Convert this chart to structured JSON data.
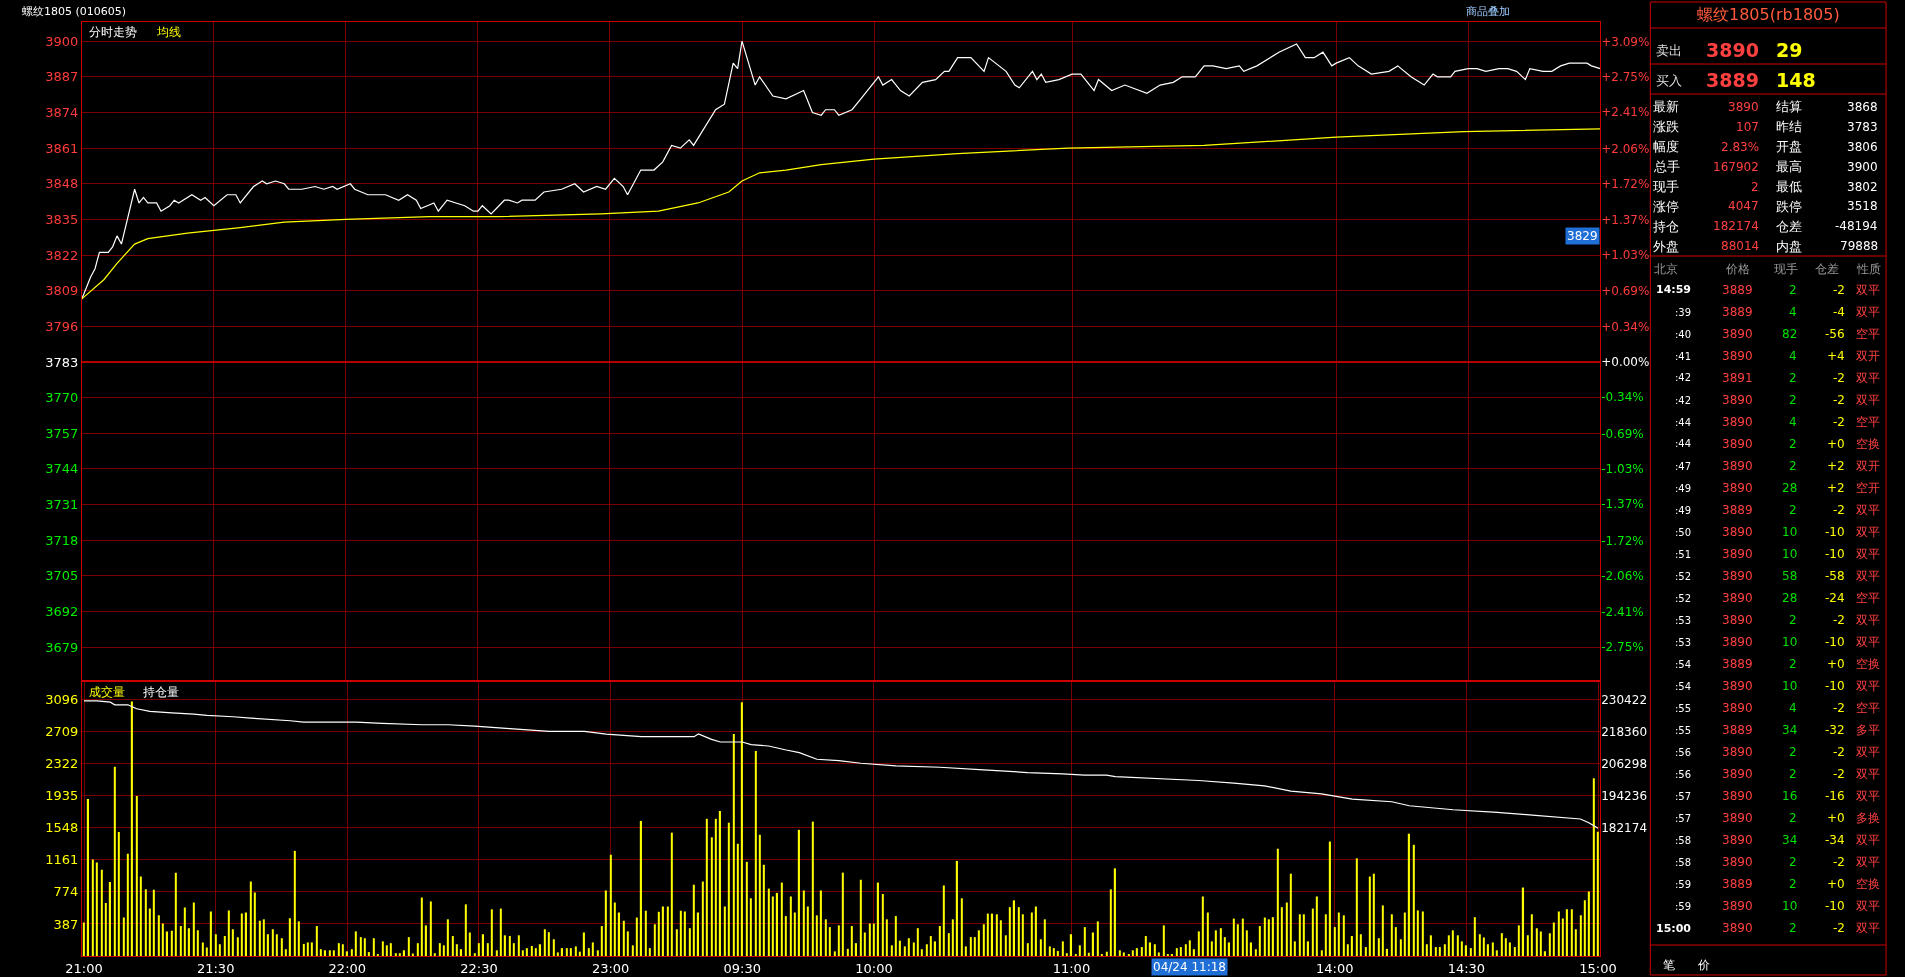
{
  "chart_data": [
    {
      "type": "line",
      "title": "螺纹1805 (010605)",
      "ylim": [
        3667,
        3907
      ],
      "yticks": [
        3679,
        3692,
        3705,
        3718,
        3731,
        3744,
        3757,
        3770,
        3783,
        3796,
        3809,
        3822,
        3835,
        3848,
        3861,
        3874,
        3887,
        3900
      ],
      "y2lim": [
        -3.066,
        3.278
      ],
      "y2ticks": [
        {
          "value": -2.75,
          "label": "-2.75%"
        },
        {
          "value": -2.41,
          "label": "-2.41%"
        },
        {
          "value": -2.06,
          "label": "-2.06%"
        },
        {
          "value": -1.72,
          "label": "-1.72%"
        },
        {
          "value": -1.37,
          "label": "-1.37%"
        },
        {
          "value": -1.03,
          "label": "-1.03%"
        },
        {
          "value": -0.69,
          "label": "-0.69%"
        },
        {
          "value": -0.34,
          "label": "-0.34%"
        },
        {
          "value": 0,
          "label": "+0.00%"
        },
        {
          "value": 0.34,
          "label": "+0.34%"
        },
        {
          "value": 0.69,
          "label": "+0.69%"
        },
        {
          "value": 1.03,
          "label": "+1.03%"
        },
        {
          "value": 1.37,
          "label": "+1.37%"
        },
        {
          "value": 1.72,
          "label": "+1.72%"
        },
        {
          "value": 2.06,
          "label": "+2.06%"
        },
        {
          "value": 2.41,
          "label": "+2.41%"
        },
        {
          "value": 2.75,
          "label": "+2.75%"
        },
        {
          "value": 3.09,
          "label": "+3.09%"
        }
      ],
      "grid": true,
      "legend": "top left",
      "tick_labels": "y",
      "ref_lines": [
        {
          "axis": "y",
          "value": 3783,
          "color": "#b00000"
        }
      ],
      "annotations": [
        {
          "text": "3829",
          "y": 3829
        },
        "商品叠加"
      ],
      "series": [
        {
          "name": "分时走势",
          "color": "#ffffff",
          "values": [
            3806,
            null,
            3814,
            3817,
            3823,
            null,
            3823,
            3825,
            3829,
            3826,
            null,
            null,
            3846,
            3841,
            3843,
            3841,
            null,
            3841,
            3838,
            null,
            3840,
            3842,
            3841,
            null,
            null,
            3844,
            null,
            3842,
            3843,
            null,
            3840,
            null,
            null,
            3844,
            null,
            3844,
            3841,
            null,
            null,
            3847,
            3848,
            3849,
            3848,
            null,
            3849,
            null,
            3848,
            3846,
            null,
            null,
            3846,
            null,
            null,
            3847,
            null,
            3846,
            null,
            3847,
            3846,
            null,
            null,
            3848,
            3846,
            null,
            null,
            3844,
            null,
            3844,
            null,
            3844,
            null,
            null,
            3842,
            null,
            3844,
            null,
            3842,
            3839,
            null,
            null,
            3841,
            3838,
            null,
            3842,
            null,
            3841,
            null,
            3840,
            null,
            3838,
            3838,
            3840,
            null,
            3837,
            null,
            null,
            3842,
            3842,
            null,
            3841,
            3842,
            null,
            null,
            3842,
            null,
            3845,
            null,
            null,
            null,
            3846,
            null,
            null,
            3848,
            null,
            3845,
            null,
            null,
            3847,
            null,
            3846,
            null,
            3850,
            null,
            3847,
            3844,
            null,
            null,
            3853,
            null,
            null,
            3853,
            null,
            3856,
            null,
            3862,
            null,
            3861,
            null,
            3864,
            3862,
            null,
            null,
            null,
            null,
            3875,
            null,
            3877,
            null,
            3892,
            3890,
            3900,
            null,
            null,
            3884,
            3887,
            null,
            null,
            3880,
            null,
            null,
            3879,
            null,
            null,
            null,
            3882,
            null,
            3874,
            null,
            3873,
            3875,
            null,
            3875,
            3873,
            null,
            null,
            3875,
            null,
            3879,
            null,
            null,
            null,
            3887,
            3884,
            null,
            3886,
            null,
            3882,
            null,
            3880,
            null,
            null,
            3885,
            null,
            null,
            3886,
            null,
            3889,
            3889,
            null,
            3894,
            null,
            null,
            3894,
            null,
            null,
            3889,
            3894,
            null,
            null,
            null,
            3889,
            null,
            3884,
            3883,
            null,
            null,
            3889,
            3886,
            3888,
            3885,
            null,
            null,
            3886,
            null,
            null,
            3888,
            null,
            3888,
            null,
            null,
            3882,
            3886,
            null,
            null,
            3882,
            null,
            null,
            3884,
            null,
            null,
            null,
            null,
            3881,
            null,
            null,
            3884,
            null,
            null,
            3885,
            null,
            3887,
            null,
            null,
            3887,
            null,
            3891,
            null,
            3891,
            null,
            null,
            3890,
            null,
            null,
            3891,
            3889,
            null,
            null,
            3891,
            null,
            null,
            3894,
            null,
            3896,
            null,
            null,
            null,
            3899,
            null,
            3894,
            null,
            3894,
            null,
            3896,
            null,
            3891,
            3892,
            null,
            null,
            3894,
            null,
            3891,
            null,
            null,
            3888,
            null,
            null,
            null,
            3889,
            null,
            3891,
            null,
            null,
            3887,
            null,
            null,
            3884,
            null,
            3888,
            3887,
            null,
            null,
            3887,
            3889,
            null,
            null,
            3890,
            null,
            3890,
            null,
            3889,
            null,
            null,
            3890,
            null,
            3890,
            null,
            3889,
            null,
            3886,
            3890,
            null,
            null,
            3889,
            null,
            3889,
            null,
            3891,
            null,
            3892,
            null,
            null,
            null,
            3892,
            3891,
            null,
            3890
          ]
        },
        {
          "name": "均线",
          "color": "#ffff00",
          "values": [
            3806,
            null,
            null,
            null,
            null,
            3813,
            null,
            null,
            3819,
            null,
            null,
            null,
            3826,
            null,
            null,
            3828,
            null,
            null,
            null,
            null,
            null,
            null,
            null,
            null,
            3830,
            null,
            null,
            null,
            null,
            null,
            null,
            null,
            null,
            null,
            null,
            null,
            3832,
            null,
            null,
            null,
            null,
            null,
            null,
            null,
            null,
            null,
            3834,
            null,
            null,
            null,
            null,
            null,
            null,
            null,
            null,
            null,
            null,
            null,
            null,
            null,
            3835,
            null,
            null,
            null,
            null,
            null,
            null,
            null,
            null,
            null,
            null,
            null,
            null,
            null,
            null,
            null,
            null,
            null,
            null,
            3836,
            null,
            null,
            null,
            null,
            null,
            null,
            null,
            null,
            null,
            null,
            null,
            null,
            null,
            null,
            3836,
            null,
            null,
            null,
            null,
            null,
            null,
            null,
            null,
            null,
            null,
            null,
            null,
            null,
            null,
            null,
            null,
            null,
            null,
            null,
            null,
            null,
            null,
            null,
            3837,
            null,
            null,
            null,
            null,
            null,
            null,
            null,
            null,
            null,
            null,
            null,
            null,
            3838,
            null,
            null,
            null,
            null,
            null,
            null,
            null,
            null,
            3841,
            null,
            null,
            null,
            null,
            null,
            null,
            3845,
            null,
            null,
            3849,
            null,
            null,
            null,
            3852,
            null,
            null,
            null,
            null,
            null,
            3853,
            null,
            null,
            null,
            3854,
            null,
            null,
            null,
            3855,
            null,
            null,
            null,
            null,
            null,
            null,
            null,
            null,
            null,
            null,
            null,
            3857,
            null,
            null,
            null,
            null,
            null,
            null,
            null,
            null,
            null,
            null,
            null,
            null,
            null,
            null,
            null,
            null,
            null,
            null,
            3859,
            null,
            null,
            null,
            null,
            null,
            null,
            null,
            null,
            null,
            null,
            null,
            null,
            null,
            null,
            null,
            null,
            null,
            null,
            null,
            null,
            null,
            null,
            null,
            null,
            3861,
            null,
            null,
            null,
            null,
            null,
            null,
            null,
            null,
            null,
            null,
            null,
            null,
            null,
            null,
            null,
            null,
            null,
            null,
            null,
            null,
            null,
            null,
            null,
            null,
            null,
            null,
            null,
            null,
            null,
            null,
            3862,
            null,
            null,
            null,
            null,
            null,
            null,
            null,
            null,
            null,
            null,
            null,
            null,
            null,
            null,
            null,
            null,
            null,
            null,
            null,
            null,
            null,
            null,
            null,
            null,
            null,
            null,
            null,
            null,
            null,
            3865,
            null,
            null,
            null,
            null,
            null,
            null,
            null,
            null,
            null,
            null,
            null,
            null,
            null,
            null,
            null,
            null,
            null,
            null,
            null,
            null,
            null,
            null,
            null,
            null,
            null,
            null,
            null,
            null,
            3867,
            null,
            null,
            null,
            null,
            null,
            null,
            null,
            null,
            null,
            null,
            null,
            null,
            null,
            null,
            null,
            null,
            null,
            null,
            null,
            null,
            null,
            null,
            null,
            null,
            null,
            null,
            null,
            null,
            null,
            null,
            3868
          ]
        }
      ]
    },
    {
      "type": "bar",
      "categories": [
        "21:00",
        null,
        null,
        null,
        null,
        null,
        null,
        null,
        null,
        null,
        null,
        null,
        null,
        null,
        null,
        null,
        null,
        null,
        null,
        null,
        null,
        null,
        null,
        null,
        null,
        null,
        null,
        null,
        null,
        null,
        "21:30",
        null,
        null,
        null,
        null,
        null,
        null,
        null,
        null,
        null,
        null,
        null,
        null,
        null,
        null,
        null,
        null,
        null,
        null,
        null,
        null,
        null,
        null,
        null,
        null,
        null,
        null,
        null,
        null,
        null,
        "22:00",
        null,
        null,
        null,
        null,
        null,
        null,
        null,
        null,
        null,
        null,
        null,
        null,
        null,
        null,
        null,
        null,
        null,
        null,
        null,
        null,
        null,
        null,
        null,
        null,
        null,
        null,
        null,
        null,
        null,
        "22:30",
        null,
        null,
        null,
        null,
        null,
        null,
        null,
        null,
        null,
        null,
        null,
        null,
        null,
        null,
        null,
        null,
        null,
        null,
        null,
        null,
        null,
        null,
        null,
        null,
        null,
        null,
        null,
        null,
        null,
        "23:00",
        null,
        null,
        null,
        null,
        null,
        null,
        null,
        null,
        null,
        null,
        null,
        null,
        null,
        null,
        null,
        null,
        null,
        null,
        null,
        null,
        null,
        null,
        null,
        null,
        null,
        null,
        null,
        null,
        null,
        "09:30",
        null,
        null,
        null,
        null,
        null,
        null,
        null,
        null,
        null,
        null,
        null,
        null,
        null,
        null,
        null,
        null,
        null,
        null,
        null,
        null,
        null,
        null,
        null,
        null,
        null,
        null,
        null,
        null,
        null,
        "10:00",
        null,
        null,
        null,
        null,
        null,
        null,
        null,
        null,
        null,
        null,
        null,
        null,
        null,
        null,
        null,
        null,
        null,
        null,
        null,
        null,
        null,
        null,
        null,
        null,
        null,
        null,
        null,
        null,
        null,
        null,
        null,
        null,
        null,
        null,
        null,
        null,
        null,
        null,
        null,
        null,
        null,
        null,
        null,
        null,
        "11:00",
        null,
        null,
        null,
        null,
        null,
        null,
        null,
        null,
        null,
        null,
        null,
        null,
        null,
        null,
        null,
        null,
        null,
        null,
        null,
        null,
        null,
        null,
        null,
        null,
        null,
        null,
        null,
        null,
        null,
        null,
        null,
        null,
        null,
        null,
        null,
        null,
        null,
        null,
        null,
        null,
        null,
        null,
        null,
        null,
        null,
        null,
        null,
        null,
        null,
        null,
        null,
        null,
        null,
        null,
        null,
        null,
        null,
        null,
        null,
        "14:00",
        null,
        null,
        null,
        null,
        null,
        null,
        null,
        null,
        null,
        null,
        null,
        null,
        null,
        null,
        null,
        null,
        null,
        null,
        null,
        null,
        null,
        null,
        null,
        null,
        null,
        null,
        null,
        null,
        null,
        "14:30",
        null,
        null,
        null,
        null,
        null,
        null,
        null,
        null,
        null,
        null,
        null,
        null,
        null,
        null,
        null,
        null,
        null,
        null,
        null,
        null,
        null,
        null,
        null,
        null,
        null,
        null,
        null,
        null,
        null,
        "15:00"
      ],
      "ylim": [
        0,
        3310
      ],
      "yticks": [
        387,
        774,
        1161,
        1548,
        1935,
        2322,
        2709,
        3096
      ],
      "y2lim": [
        133926,
        237092
      ],
      "y2ticks": [
        182174,
        194236,
        206298,
        218360,
        230422
      ],
      "grid": true,
      "legend": "top left",
      "annotations": [
        "04/24 11:18"
      ],
      "series": [
        {
          "name": "成交量",
          "color": "#ffff00",
          "values": [
            405,
            1898,
            1167,
            1128,
            1042,
            641,
            895,
            2286,
            1498,
            465,
            1236,
            3074,
            1933,
            960,
            805,
            573,
            801,
            491,
            392,
            297,
            306,
            1007,
            362,
            585,
            336,
            646,
            310,
            164,
            103,
            538,
            263,
            142,
            241,
            551,
            323,
            228,
            512,
            525,
            900,
            766,
            426,
            443,
            263,
            323,
            263,
            215,
            82,
            456,
            1270,
            418,
            146,
            164,
            164,
            362,
            82,
            69,
            69,
            69,
            155,
            142,
            56,
            82,
            297,
            228,
            215,
            47,
            215,
            22,
            177,
            129,
            155,
            34,
            34,
            69,
            228,
            30,
            155,
            706,
            370,
            659,
            34,
            155,
            129,
            443,
            241,
            142,
            82,
            624,
            284,
            34,
            155,
            263,
            155,
            564,
            69,
            573,
            250,
            241,
            155,
            250,
            69,
            95,
            121,
            95,
            142,
            323,
            288,
            202,
            43,
            95,
            95,
            95,
            116,
            52,
            284,
            95,
            164,
            69,
            362,
            792,
            1223,
            646,
            525,
            426,
            297,
            129,
            465,
            1632,
            547,
            95,
            383,
            534,
            598,
            598,
            1490,
            323,
            547,
            538,
            336,
            861,
            525,
            900,
            1657,
            1434,
            1657,
            1752,
            598,
            1610,
            2682,
            1356,
            3065,
            1137,
            697,
            2475,
            1464,
            1102,
            814,
            719,
            762,
            887,
            482,
            719,
            525,
            1524,
            792,
            598,
            1623,
            491,
            792,
            443,
            349,
            56,
            370,
            1007,
            86,
            362,
            155,
            921,
            284,
            392,
            392,
            887,
            749,
            443,
            129,
            482,
            185,
            116,
            215,
            164,
            336,
            82,
            142,
            241,
            177,
            362,
            852,
            276,
            443,
            1149,
            697,
            116,
            228,
            228,
            310,
            383,
            512,
            512,
            504,
            431,
            250,
            590,
            672,
            590,
            504,
            155,
            525,
            598,
            202,
            443,
            116,
            95,
            60,
            177,
            34,
            263,
            22,
            129,
            349,
            39,
            284,
            418,
            17,
            52,
            805,
            1059,
            69,
            43,
            17,
            69,
            95,
            108,
            241,
            164,
            142,
            43,
            370,
            17,
            17,
            95,
            108,
            142,
            189,
            82,
            297,
            719,
            525,
            177,
            310,
            336,
            228,
            164,
            452,
            383,
            452,
            310,
            164,
            82,
            362,
            465,
            443,
            469,
            1296,
            590,
            646,
            994,
            177,
            504,
            504,
            177,
            573,
            719,
            69,
            504,
            1382,
            349,
            525,
            491,
            142,
            241,
            1180,
            263,
            108,
            960,
            994,
            215,
            611,
            86,
            504,
            349,
            202,
            525,
            1477,
            1343,
            551,
            538,
            142,
            250,
            108,
            108,
            142,
            250,
            310,
            250,
            177,
            129,
            95,
            469,
            263,
            224,
            142,
            164,
            69,
            276,
            215,
            164,
            108,
            370,
            827,
            250,
            504,
            336,
            297,
            56,
            276,
            405,
            538,
            452,
            564,
            564,
            323,
            491,
            672,
            779,
            2148,
            1502
          ]
        },
        {
          "name": "持仓量",
          "type": "line",
          "axis": "y2",
          "color": "#ffffff",
          "values": [
            230000,
            null,
            null,
            230000,
            null,
            null,
            229500,
            228500,
            null,
            null,
            228500,
            null,
            227000,
            null,
            null,
            226000,
            null,
            null,
            null,
            null,
            225500,
            null,
            null,
            null,
            null,
            225000,
            null,
            null,
            224500,
            null,
            null,
            null,
            null,
            null,
            224000,
            null,
            null,
            null,
            223500,
            null,
            null,
            null,
            null,
            null,
            null,
            null,
            null,
            222500,
            null,
            null,
            222000,
            null,
            null,
            null,
            null,
            null,
            null,
            null,
            null,
            null,
            null,
            null,
            222000,
            null,
            null,
            null,
            null,
            null,
            221500,
            null,
            null,
            null,
            null,
            null,
            null,
            null,
            null,
            221000,
            null,
            null,
            null,
            null,
            null,
            221000,
            null,
            null,
            null,
            null,
            null,
            220500,
            null,
            null,
            null,
            null,
            null,
            null,
            null,
            219500,
            null,
            null,
            null,
            null,
            null,
            null,
            null,
            null,
            218500,
            null,
            null,
            null,
            null,
            null,
            null,
            null,
            218500,
            null,
            null,
            null,
            null,
            217500,
            null,
            null,
            null,
            null,
            null,
            null,
            null,
            216500,
            null,
            null,
            null,
            null,
            null,
            null,
            null,
            null,
            null,
            null,
            null,
            216500,
            217500,
            null,
            null,
            215500,
            null,
            214500,
            null,
            null,
            null,
            null,
            214500,
            null,
            213500,
            null,
            null,
            null,
            213000,
            null,
            null,
            null,
            211500,
            null,
            null,
            210500,
            null,
            null,
            null,
            208000,
            null,
            null,
            null,
            null,
            207500,
            null,
            null,
            null,
            null,
            206500,
            null,
            null,
            null,
            null,
            null,
            null,
            null,
            205500,
            null,
            null,
            null,
            null,
            null,
            null,
            null,
            null,
            null,
            205000,
            null,
            null,
            null,
            null,
            null,
            null,
            null,
            null,
            null,
            204000,
            null,
            null,
            null,
            null,
            null,
            null,
            null,
            null,
            null,
            203000,
            null,
            null,
            null,
            null,
            null,
            null,
            null,
            202500,
            null,
            null,
            null,
            null,
            202000,
            null,
            null,
            null,
            null,
            202000,
            null,
            201500,
            null,
            null,
            null,
            null,
            null,
            null,
            null,
            null,
            null,
            null,
            null,
            null,
            null,
            null,
            null,
            null,
            null,
            null,
            200000,
            null,
            null,
            null,
            null,
            null,
            null,
            null,
            199000,
            null,
            null,
            null,
            null,
            null,
            null,
            198000,
            null,
            null,
            null,
            null,
            null,
            196000,
            null,
            null,
            null,
            null,
            null,
            null,
            195000,
            null,
            null,
            null,
            null,
            null,
            null,
            193000,
            null,
            null,
            null,
            null,
            null,
            null,
            null,
            null,
            192000,
            null,
            null,
            null,
            190500,
            null,
            null,
            null,
            null,
            null,
            null,
            null,
            null,
            null,
            189000,
            null,
            null,
            null,
            null,
            null,
            null,
            null,
            null,
            null,
            188000,
            null,
            null,
            null,
            null,
            null,
            null,
            null,
            187000,
            null,
            null,
            null,
            null,
            null,
            null,
            null,
            null,
            null,
            null,
            185500,
            null,
            184000,
            null,
            182000
          ]
        }
      ]
    },
    {
      "type": "other",
      "title": "螺纹1805(rb1805)",
      "cell_labels": [
        [
          "卖出",
          "3890",
          "29"
        ],
        [
          "买入",
          "3889",
          "148"
        ],
        [
          "最新",
          "3890",
          "结算",
          "3868"
        ],
        [
          "涨跌",
          "107",
          "昨结",
          "3783"
        ],
        [
          "幅度",
          "2.83%",
          "开盘",
          "3806"
        ],
        [
          "总手",
          "167902",
          "最高",
          "3900"
        ],
        [
          "现手",
          "2",
          "最低",
          "3802"
        ],
        [
          "涨停",
          "4047",
          "跌停",
          "3518"
        ],
        [
          "持仓",
          "182174",
          "仓差",
          "-48194"
        ],
        [
          "外盘",
          "88014",
          "内盘",
          "79888"
        ],
        [
          "北京",
          "价格",
          "现手",
          "仓差",
          "性质"
        ],
        [
          "14:59",
          "3889",
          "2",
          "-2",
          "双平"
        ],
        [
          ":39",
          "3889",
          "4",
          "-4",
          "双平"
        ],
        [
          ":40",
          "3890",
          "82",
          "-56",
          "空平"
        ],
        [
          ":41",
          "3890",
          "4",
          "+4",
          "双开"
        ],
        [
          ":42",
          "3891",
          "2",
          "-2",
          "双平"
        ],
        [
          ":42",
          "3890",
          "2",
          "-2",
          "双平"
        ],
        [
          ":44",
          "3890",
          "4",
          "-2",
          "空平"
        ],
        [
          ":44",
          "3890",
          "2",
          "+0",
          "空换"
        ],
        [
          ":47",
          "3890",
          "2",
          "+2",
          "双开"
        ],
        [
          ":49",
          "3890",
          "28",
          "+2",
          "空开"
        ],
        [
          ":49",
          "3889",
          "2",
          "-2",
          "双平"
        ],
        [
          ":50",
          "3890",
          "10",
          "-10",
          "双平"
        ],
        [
          ":51",
          "3890",
          "10",
          "-10",
          "双平"
        ],
        [
          ":52",
          "3890",
          "58",
          "-58",
          "双平"
        ],
        [
          ":52",
          "3890",
          "28",
          "-24",
          "空平"
        ],
        [
          ":53",
          "3890",
          "2",
          "-2",
          "双平"
        ],
        [
          ":53",
          "3890",
          "10",
          "-10",
          "双平"
        ],
        [
          ":54",
          "3889",
          "2",
          "+0",
          "空换"
        ],
        [
          ":54",
          "3890",
          "10",
          "-10",
          "双平"
        ],
        [
          ":55",
          "3890",
          "4",
          "-2",
          "空平"
        ],
        [
          ":55",
          "3889",
          "34",
          "-32",
          "多平"
        ],
        [
          ":56",
          "3890",
          "2",
          "-2",
          "双平"
        ],
        [
          ":56",
          "3890",
          "2",
          "-2",
          "双平"
        ],
        [
          ":57",
          "3890",
          "16",
          "-16",
          "双平"
        ],
        [
          ":57",
          "3890",
          "2",
          "+0",
          "多换"
        ],
        [
          ":58",
          "3890",
          "34",
          "-34",
          "双平"
        ],
        [
          ":58",
          "3890",
          "2",
          "-2",
          "双平"
        ],
        [
          ":59",
          "3889",
          "2",
          "+0",
          "空换"
        ],
        [
          ":59",
          "3890",
          "10",
          "-10",
          "双平"
        ],
        [
          "15:00",
          "3890",
          "2",
          "-2",
          "双平"
        ],
        [
          "笔",
          "价"
        ]
      ]
    }
  ]
}
